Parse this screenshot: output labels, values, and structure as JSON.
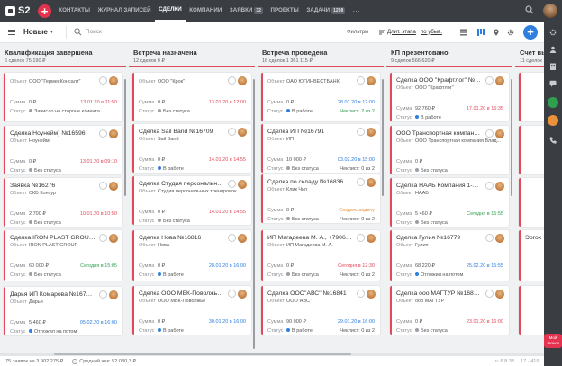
{
  "app": {
    "logo_text": "S2"
  },
  "nav": {
    "items": [
      {
        "label": "КОНТАКТЫ",
        "active": false
      },
      {
        "label": "ЖУРНАЛ ЗАПИСЕЙ",
        "active": false
      },
      {
        "label": "СДЕЛКИ",
        "active": true
      },
      {
        "label": "КОМПАНИИ",
        "active": false
      },
      {
        "label": "ЗАЯВКИ",
        "active": false,
        "badge": "32"
      },
      {
        "label": "ПРОЕКТЫ",
        "active": false
      },
      {
        "label": "ЗАДАЧИ",
        "active": false,
        "badge": "1298"
      }
    ],
    "more": "···"
  },
  "toolbar": {
    "view_title": "Новые",
    "search_placeholder": "Поиск",
    "filters_label": "Фильтры",
    "sort_label": "Длит. этапа",
    "sort_dir": "по убыв."
  },
  "columns": [
    {
      "title": "Квалификация завершена",
      "summary": "6 сделок   75 190 ₽",
      "bar": "#e04a5a",
      "cards": [
        {
          "title": "",
          "object": "ООО \"ГермесКонсалт\"",
          "amount": "0 ₽",
          "date": "13.01.20 в 11:50",
          "date_class": "red",
          "status": "Зависло на стороне клиента",
          "status_dot": "grey"
        },
        {
          "title": "Сделка Ноунейм) №16596",
          "object": "Ноунейм)",
          "amount": "0 ₽",
          "date": "13.01.20 в 09:10",
          "date_class": "red",
          "status": "Без статуса",
          "status_dot": "grey"
        },
        {
          "title": "Заявка №16276",
          "object": "СКБ Контур",
          "amount": "2 700 ₽",
          "date": "10.01.20 в 10:50",
          "date_class": "red",
          "status": "Без статуса",
          "status_dot": "grey"
        },
        {
          "title": "Сделка IRON PLAST GROUP  №16",
          "object": "IRON PLAST GROUP",
          "amount": "60 000 ₽",
          "date": "Сегодня в 15:05",
          "date_class": "gr",
          "status": "Без статуса",
          "status_dot": "grey"
        },
        {
          "title": "Дарья ИП Комарова №16795...",
          "object": "Дарья",
          "amount": "5 460 ₽",
          "date": "05.02.20 в 16:00",
          "date_class": "bl",
          "status": "Отложил на потом",
          "status_dot": "blue"
        }
      ]
    },
    {
      "title": "Встреча назначена",
      "summary": "12 сделок   0 ₽",
      "bar": "#e04a5a",
      "cards": [
        {
          "title": "",
          "object": "ООО \"Крок\"",
          "amount": "0 ₽",
          "date": "13.01.20 в 12:00",
          "date_class": "red",
          "status": "Без статуса",
          "status_dot": "grey"
        },
        {
          "title": "Сделка Sail Band  №16709",
          "object": "Sail Band",
          "amount": "0 ₽",
          "date": "14.01.20 в 14:55",
          "date_class": "red",
          "status": "В работе",
          "status_dot": "blue"
        },
        {
          "title": "Сделка Студия персональных т",
          "object": "Студия персональных тренировок",
          "amount": "0 ₽",
          "date": "14.01.20 в 14:55",
          "date_class": "red",
          "status": "Без статуса",
          "status_dot": "grey"
        },
        {
          "title": "Сделка Нова  №16816",
          "object": "Нова",
          "amount": "0 ₽",
          "date": "28.01.20 в 16:00",
          "date_class": "bl",
          "status": "В работе",
          "status_dot": "blue"
        },
        {
          "title": "Сделка ООО МБК-Поволжье  №",
          "object": "ООО МБК-Поволжье",
          "amount": "0 ₽",
          "date": "30.01.20 в 16:00",
          "date_class": "bl",
          "status": "В работе",
          "status_dot": "blue"
        }
      ]
    },
    {
      "title": "Встреча проведена",
      "summary": "16 сделок   1 361 115 ₽",
      "bar": "#e04a5a",
      "cards": [
        {
          "title": "",
          "object": "ОАО ЮГИНВЕСТБАНК",
          "amount": "0 ₽",
          "date": "28.01.20 в 12:00",
          "date_class": "bl",
          "status": "В работе",
          "status_dot": "blue",
          "checklist": "Чеклист: 2 из 2",
          "check_class": "gr"
        },
        {
          "title": "Сделка ИП  №16791",
          "object": "ИП",
          "amount": "10 000 ₽",
          "date": "03.02.20 в 15:00",
          "date_class": "bl",
          "status": "Без статуса",
          "status_dot": "grey",
          "checklist": "Чеклист: 0 из 2",
          "check_class": ""
        },
        {
          "title": "Сделка по складу №16836",
          "object": "Клик Чип",
          "amount": "0 ₽",
          "date": "Создать задачу",
          "date_class": "og",
          "status": "Без статуса",
          "status_dot": "grey",
          "checklist": "Чеклист: 0 из 2",
          "check_class": ""
        },
        {
          "title": "ИП Магадеева М. А., +790609498...",
          "object": "ИП Магадеева М. А.",
          "amount": "0 ₽",
          "date": "Сегодня в 12:30",
          "date_class": "red",
          "status": "Без статуса",
          "status_dot": "grey",
          "checklist": "Чеклист: 0 из 2",
          "check_class": ""
        },
        {
          "title": "Сделка ООО\"АВС\"  №16841",
          "object": "ООО\"АВС\"",
          "amount": "90 000 ₽",
          "date": "29.01.20 в 16:00",
          "date_class": "bl",
          "status": "В работе",
          "status_dot": "blue",
          "checklist": "Чеклист: 0 из 2",
          "check_class": ""
        }
      ]
    },
    {
      "title": "КП презентовано",
      "summary": "9 сделок   566 620 ₽",
      "bar": "#e04a5a",
      "cards": [
        {
          "title": "Сделка ООО \"Крафтлог\"  №1640",
          "object": "ООО \"Крафтлог\"",
          "amount": "92 760 ₽",
          "date": "17.01.20 в 15:35",
          "date_class": "red",
          "status": "В работе",
          "status_dot": "blue"
        },
        {
          "title": "ООО Транспортная компания В",
          "object": "ООО Транспортная компания Влад...",
          "amount": "0 ₽",
          "date": "",
          "date_class": "",
          "status": "Без статуса",
          "status_dot": "grey"
        },
        {
          "title": "Сделка НААБ Компания 1-2 лк",
          "object": "НААБ",
          "amount": "5 460 ₽",
          "date": "Сегодня в 15:55",
          "date_class": "gr",
          "status": "Без статуса",
          "status_dot": "grey"
        },
        {
          "title": "Сделка Гулия  №16779",
          "object": "Гулия",
          "amount": "68 220 ₽",
          "date": "25.02.20 в 15:55",
          "date_class": "bl",
          "status": "Отложил на потом",
          "status_dot": "blue"
        },
        {
          "title": "Сделка ооо МАГТУР №16834...",
          "object": "ооо МАГТУР",
          "amount": "0 ₽",
          "date": "23.01.20 в 16:00",
          "date_class": "red",
          "status": "Без статуса",
          "status_dot": "grey"
        }
      ]
    },
    {
      "title": "Счет выставлен",
      "summary": "11 сделок",
      "bar": "#e04a5a",
      "cards": [
        {
          "title": "",
          "object": "",
          "amount": "",
          "date": "",
          "date_class": "",
          "status": "",
          "status_dot": "blue"
        },
        {
          "title": "",
          "object": "",
          "amount": "",
          "date": "",
          "date_class": "",
          "status": "",
          "status_dot": "grey"
        },
        {
          "title": "",
          "object": "",
          "amount": "",
          "date": "",
          "date_class": "",
          "status": "",
          "status_dot": "grey"
        },
        {
          "title": "Эргох",
          "object": "",
          "amount": "",
          "date": "",
          "date_class": "",
          "status": "",
          "status_dot": "grey"
        },
        {
          "title": "",
          "object": "",
          "amount": "",
          "date": "",
          "date_class": "",
          "status": "",
          "status_dot": "grey"
        }
      ]
    }
  ],
  "labels": {
    "object": "Объект",
    "amount": "Сумма",
    "status": "Статус"
  },
  "footer": {
    "total": "75 заявок на 3 902 275 ₽",
    "avg": "Средний чек: 52 030,3 ₽",
    "version": "v. 6.8.33",
    "status": "17 · 419"
  },
  "rail": {
    "help_label": "Мой звонок"
  }
}
